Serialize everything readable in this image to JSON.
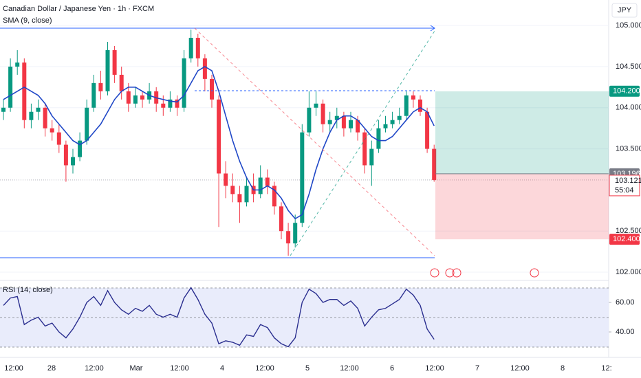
{
  "chart_data": {
    "type": "candlestick",
    "title": "Canadian Dollar / Japanese Yen · 1h · FXCM",
    "indicator": "SMA (9, close)",
    "currency": "JPY",
    "up_color": "#089981",
    "down_color": "#f23645",
    "sma_color": "#1f47c7",
    "ylim": [
      101.9,
      105.31
    ],
    "yticks": [
      {
        "value": 102,
        "label": "102.000"
      },
      {
        "value": 102.5,
        "label": "102.500"
      },
      {
        "value": 103.5,
        "label": "103.500"
      },
      {
        "value": 104,
        "label": "104.000"
      },
      {
        "value": 104.5,
        "label": "104.500"
      },
      {
        "value": 105,
        "label": "105.000"
      }
    ],
    "x_labels": [
      "12:00",
      "28",
      "12:00",
      "Mar",
      "12:00",
      "4",
      "12:00",
      "5",
      "12:00",
      "6",
      "12:00",
      "7",
      "12:00",
      "8",
      "12:"
    ],
    "ohlc": [
      [
        103.95,
        104.1,
        103.85,
        104.0
      ],
      [
        104.0,
        104.6,
        103.95,
        104.5
      ],
      [
        104.5,
        104.7,
        104.4,
        104.55
      ],
      [
        104.55,
        104.6,
        103.75,
        103.85
      ],
      [
        103.85,
        104.05,
        103.75,
        103.95
      ],
      [
        103.95,
        104.1,
        103.85,
        104.0
      ],
      [
        104.0,
        104.05,
        103.65,
        103.75
      ],
      [
        103.75,
        103.85,
        103.6,
        103.7
      ],
      [
        103.7,
        103.8,
        103.45,
        103.55
      ],
      [
        103.55,
        103.6,
        103.1,
        103.3
      ],
      [
        103.3,
        103.5,
        103.2,
        103.4
      ],
      [
        103.4,
        103.7,
        103.35,
        103.6
      ],
      [
        103.6,
        104.1,
        103.55,
        104.0
      ],
      [
        104.0,
        104.4,
        103.95,
        104.3
      ],
      [
        104.3,
        104.45,
        104.1,
        104.2
      ],
      [
        104.2,
        104.8,
        104.15,
        104.7
      ],
      [
        104.7,
        104.75,
        104.3,
        104.4
      ],
      [
        104.4,
        104.5,
        104.1,
        104.2
      ],
      [
        104.2,
        104.3,
        103.95,
        104.05
      ],
      [
        104.05,
        104.25,
        104.0,
        104.15
      ],
      [
        104.15,
        104.2,
        104.0,
        104.1
      ],
      [
        104.1,
        104.3,
        104.05,
        104.2
      ],
      [
        104.2,
        104.25,
        103.95,
        104.05
      ],
      [
        104.05,
        104.15,
        103.9,
        104.0
      ],
      [
        104.0,
        104.2,
        103.95,
        104.1
      ],
      [
        104.1,
        104.15,
        103.9,
        104.0
      ],
      [
        104.0,
        104.7,
        103.95,
        104.6
      ],
      [
        104.6,
        104.95,
        104.55,
        104.85
      ],
      [
        104.85,
        104.9,
        104.5,
        104.6
      ],
      [
        104.6,
        104.65,
        104.2,
        104.35
      ],
      [
        104.35,
        104.4,
        104.0,
        104.1
      ],
      [
        104.1,
        104.15,
        102.55,
        103.2
      ],
      [
        103.2,
        103.35,
        102.9,
        103.05
      ],
      [
        103.05,
        103.2,
        102.85,
        102.95
      ],
      [
        102.95,
        103.05,
        102.6,
        102.85
      ],
      [
        102.85,
        103.15,
        102.8,
        103.05
      ],
      [
        103.05,
        103.2,
        102.85,
        102.95
      ],
      [
        102.95,
        103.3,
        102.9,
        103.15
      ],
      [
        103.15,
        103.25,
        102.95,
        103.05
      ],
      [
        103.05,
        103.1,
        102.7,
        102.8
      ],
      [
        102.8,
        102.85,
        102.4,
        102.5
      ],
      [
        102.5,
        102.6,
        102.2,
        102.35
      ],
      [
        102.35,
        102.7,
        102.3,
        102.6
      ],
      [
        102.6,
        103.8,
        102.55,
        103.7
      ],
      [
        103.7,
        104.2,
        103.65,
        104.0
      ],
      [
        104.0,
        104.2,
        103.9,
        104.05
      ],
      [
        104.05,
        104.1,
        103.7,
        103.8
      ],
      [
        103.8,
        103.95,
        103.7,
        103.85
      ],
      [
        103.85,
        104.0,
        103.75,
        103.9
      ],
      [
        103.9,
        103.95,
        103.65,
        103.75
      ],
      [
        103.75,
        103.95,
        103.7,
        103.85
      ],
      [
        103.85,
        103.9,
        103.6,
        103.7
      ],
      [
        103.7,
        103.75,
        103.2,
        103.3
      ],
      [
        103.3,
        103.6,
        103.05,
        103.5
      ],
      [
        103.5,
        103.85,
        103.45,
        103.75
      ],
      [
        103.75,
        103.9,
        103.7,
        103.8
      ],
      [
        103.8,
        103.95,
        103.75,
        103.85
      ],
      [
        103.85,
        104.0,
        103.8,
        103.9
      ],
      [
        103.9,
        104.2,
        103.85,
        104.15
      ],
      [
        104.15,
        104.2,
        104.0,
        104.1
      ],
      [
        104.1,
        104.15,
        103.9,
        103.95
      ],
      [
        103.95,
        104.0,
        103.45,
        103.5
      ],
      [
        103.5,
        103.55,
        103.1,
        103.121
      ]
    ],
    "sma": [
      104.1,
      104.15,
      104.2,
      104.25,
      104.2,
      104.15,
      104.05,
      103.9,
      103.8,
      103.7,
      103.6,
      103.55,
      103.6,
      103.7,
      103.8,
      103.95,
      104.1,
      104.2,
      104.25,
      104.25,
      104.2,
      104.15,
      104.12,
      104.1,
      104.08,
      104.07,
      104.15,
      104.3,
      104.45,
      104.5,
      104.45,
      104.2,
      103.9,
      103.6,
      103.35,
      103.15,
      103.0,
      103.0,
      103.05,
      103.0,
      102.9,
      102.75,
      102.65,
      102.7,
      102.95,
      103.25,
      103.5,
      103.7,
      103.85,
      103.9,
      103.9,
      103.85,
      103.75,
      103.65,
      103.6,
      103.6,
      103.65,
      103.75,
      103.85,
      103.95,
      104.0,
      103.95,
      103.78
    ],
    "last_price": 103.121,
    "countdown": "55:04",
    "position": {
      "target": {
        "value": 104.2,
        "label": "104.200"
      },
      "entry": {
        "value": 103.196,
        "label": "103.196"
      },
      "stop": {
        "value": 102.4,
        "label": "102.400"
      }
    },
    "rsi": {
      "title": "RSI (14, close)",
      "color": "#2a2e8f",
      "ylim": [
        25.1,
        72.6
      ],
      "yticks": [
        {
          "value": 60,
          "label": "60.00"
        },
        {
          "value": 40,
          "label": "40.00"
        }
      ],
      "values": [
        58,
        63,
        64,
        45,
        48,
        50,
        44,
        46,
        40,
        36,
        42,
        50,
        60,
        64,
        58,
        68,
        60,
        55,
        52,
        56,
        54,
        58,
        52,
        50,
        52,
        50,
        63,
        70,
        62,
        52,
        46,
        32,
        34,
        33,
        31,
        38,
        37,
        45,
        43,
        36,
        32,
        30,
        36,
        60,
        69,
        66,
        60,
        62,
        62,
        58,
        61,
        56,
        44,
        50,
        55,
        56,
        59,
        62,
        69,
        65,
        58,
        42,
        35
      ]
    }
  }
}
